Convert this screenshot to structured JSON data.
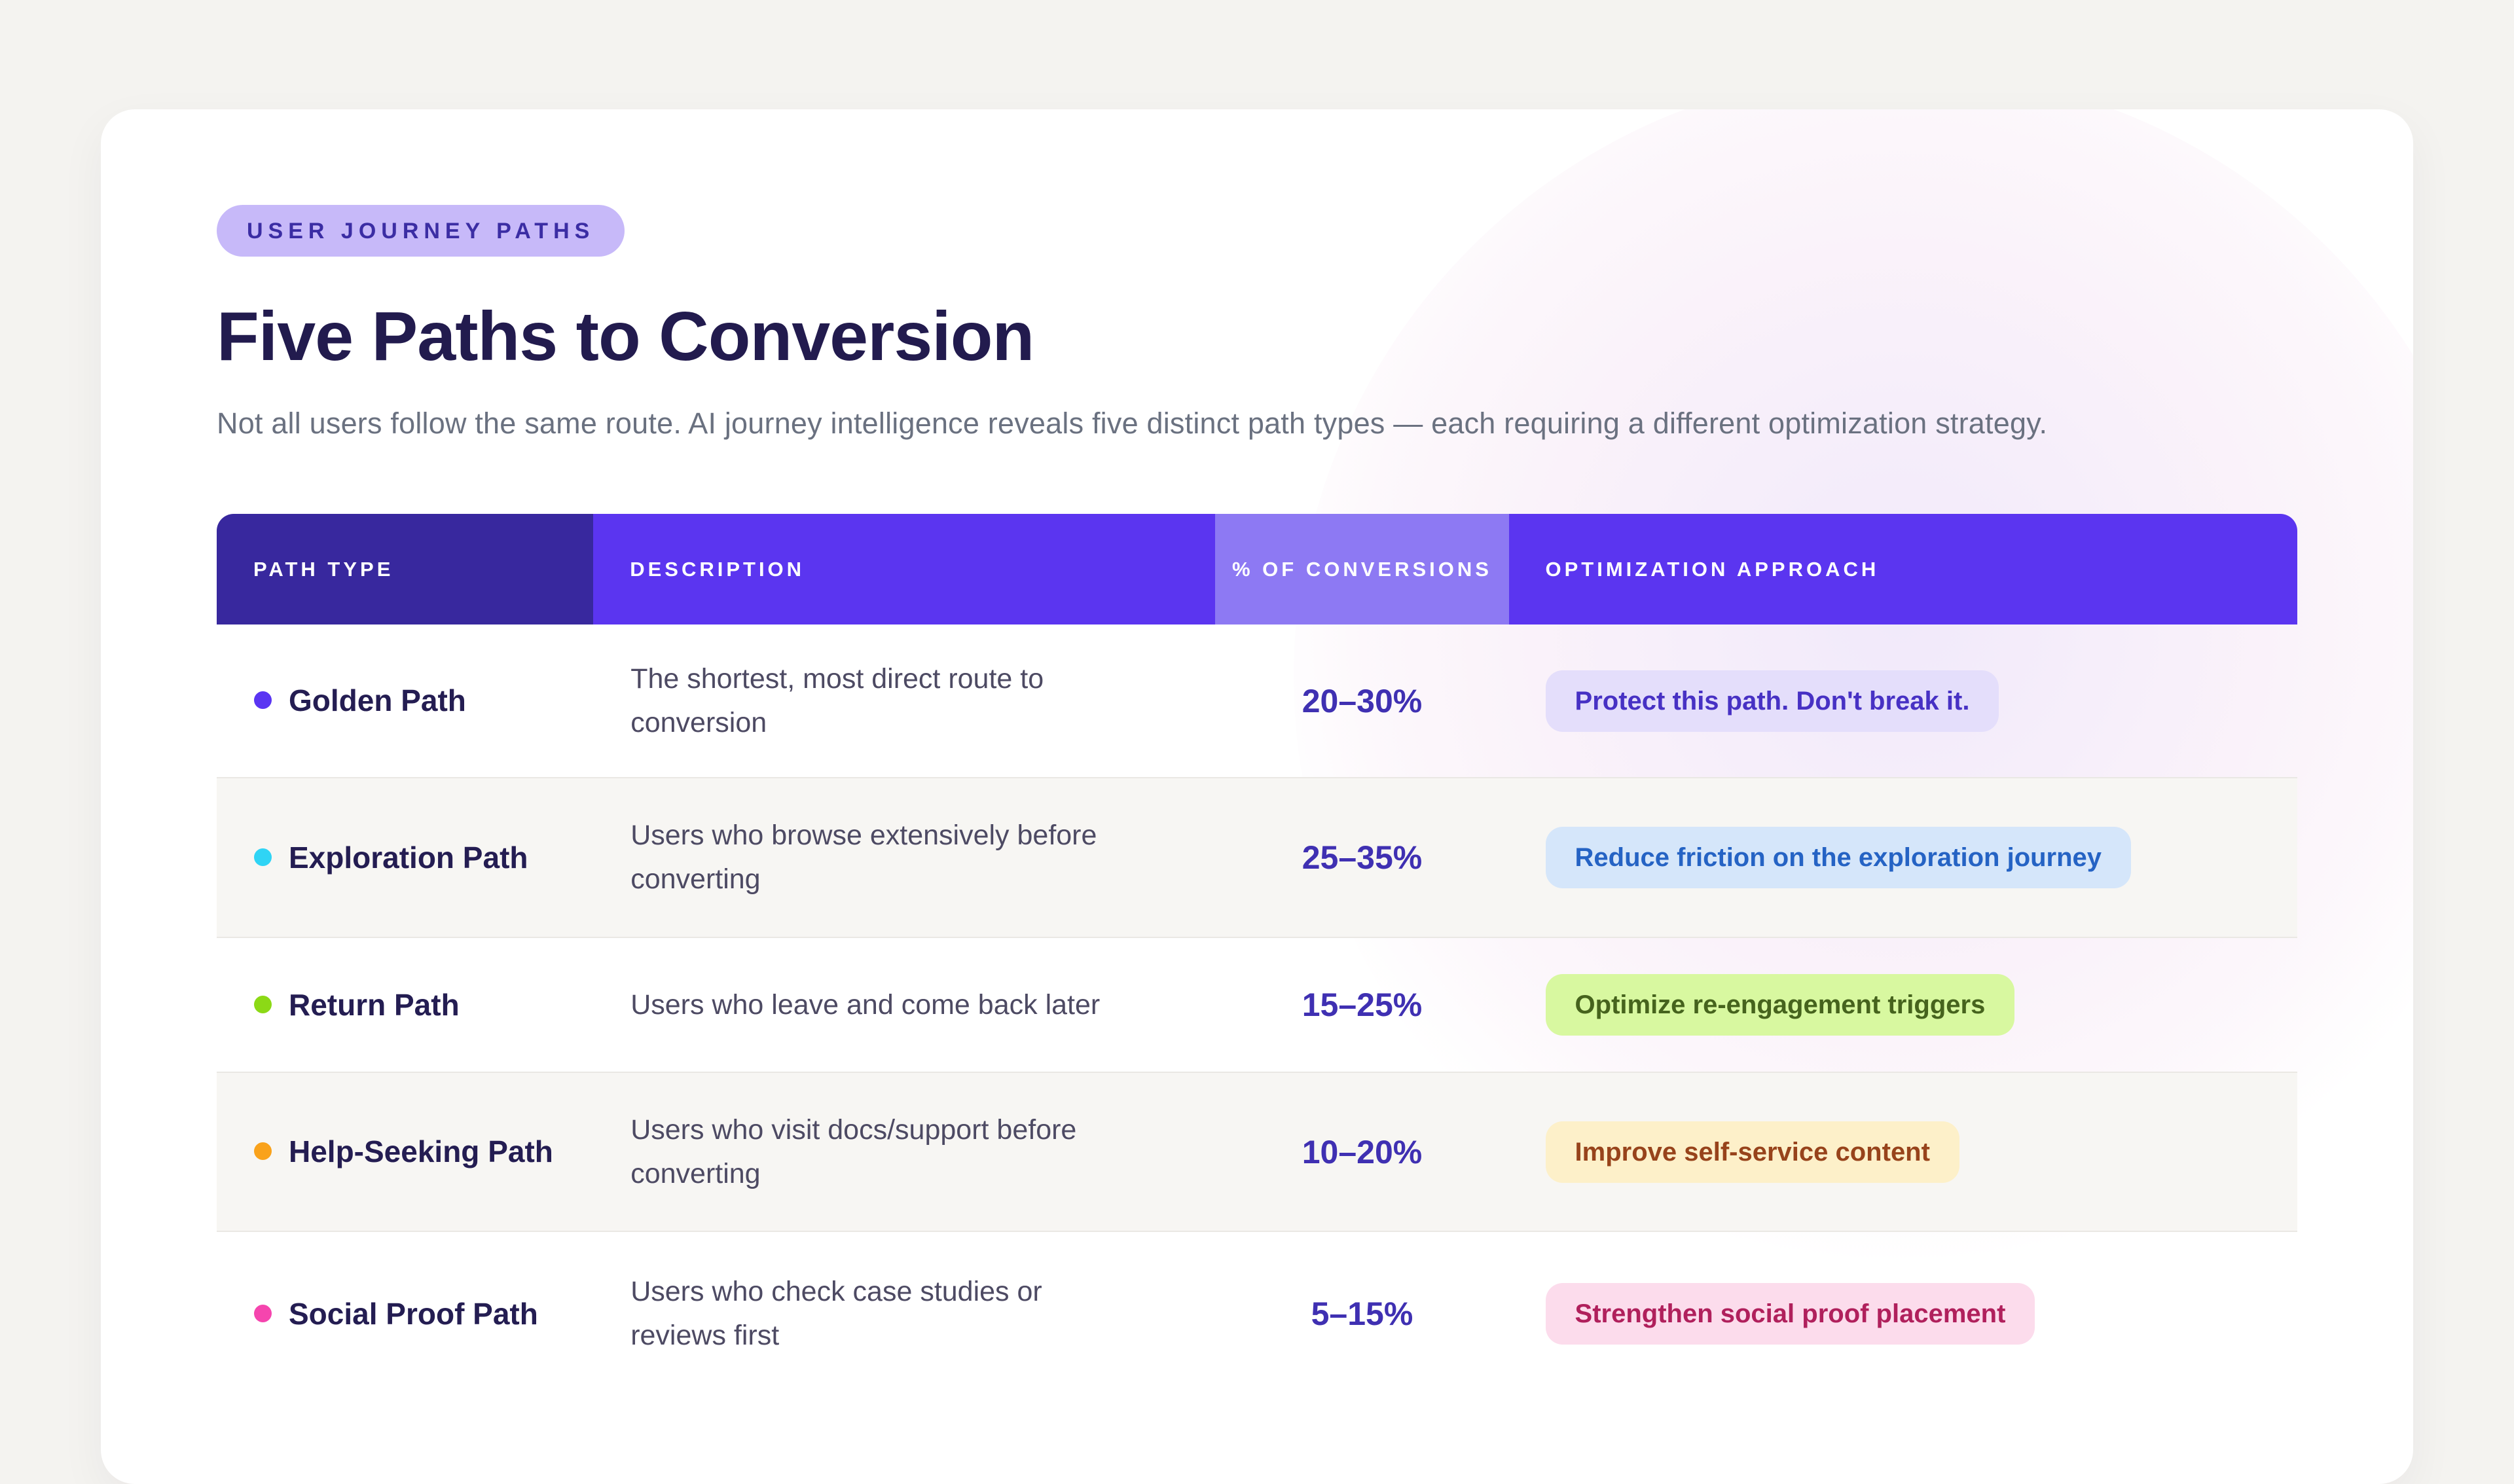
{
  "page": {
    "background": "#f4f3f0",
    "card_background": "#ffffff"
  },
  "hero": {
    "eyebrow_badge": "USER JOURNEY PATHS",
    "eyebrow_bg": "#c7b9f9",
    "eyebrow_color": "#3b2da4",
    "title": "Five Paths to Conversion",
    "subtitle": "Not all users follow the same route. AI journey intelligence reveals five distinct path types — each requiring a different optimization strategy."
  },
  "table": {
    "columns": [
      "PATH TYPE",
      "DESCRIPTION",
      "% OF CONVERSIONS",
      "OPTIMIZATION APPROACH"
    ],
    "header_colors": [
      "#38289e",
      "#5b35f0",
      "#8d79f3",
      "#5b35f0"
    ],
    "rows": [
      {
        "name": "Golden Path",
        "dot_color": "#5a35f2",
        "description": "The shortest, most direct route to conversion",
        "conversions": "20–30%",
        "approach": "Protect this path. Don't break it.",
        "approach_bg": "#e4defb",
        "approach_color": "#4731c4"
      },
      {
        "name": "Exploration Path",
        "dot_color": "#2fd4f5",
        "description": "Users who browse extensively before converting",
        "conversions": "25–35%",
        "approach": "Reduce friction on the exploration journey",
        "approach_bg": "#d5e6fa",
        "approach_color": "#2563c4",
        "row_bg": "#f7f6f3"
      },
      {
        "name": "Return Path",
        "dot_color": "#8cd916",
        "description": "Users who leave and come back later",
        "conversions": "15–25%",
        "approach": "Optimize re-engagement triggers",
        "approach_bg": "#d8f8a0",
        "approach_color": "#46631d"
      },
      {
        "name": "Help-Seeking Path",
        "dot_color": "#f9a21b",
        "description": "Users who visit docs/support before converting",
        "conversions": "10–20%",
        "approach": "Improve self-service content",
        "approach_bg": "#fdf0c9",
        "approach_color": "#97431b",
        "row_bg": "#f7f6f3"
      },
      {
        "name": "Social Proof Path",
        "dot_color": "#f545ae",
        "description": "Users who check case studies or reviews first",
        "conversions": "5–15%",
        "approach": "Strengthen social proof placement",
        "approach_bg": "#fcdcec",
        "approach_color": "#b0205c"
      }
    ]
  }
}
